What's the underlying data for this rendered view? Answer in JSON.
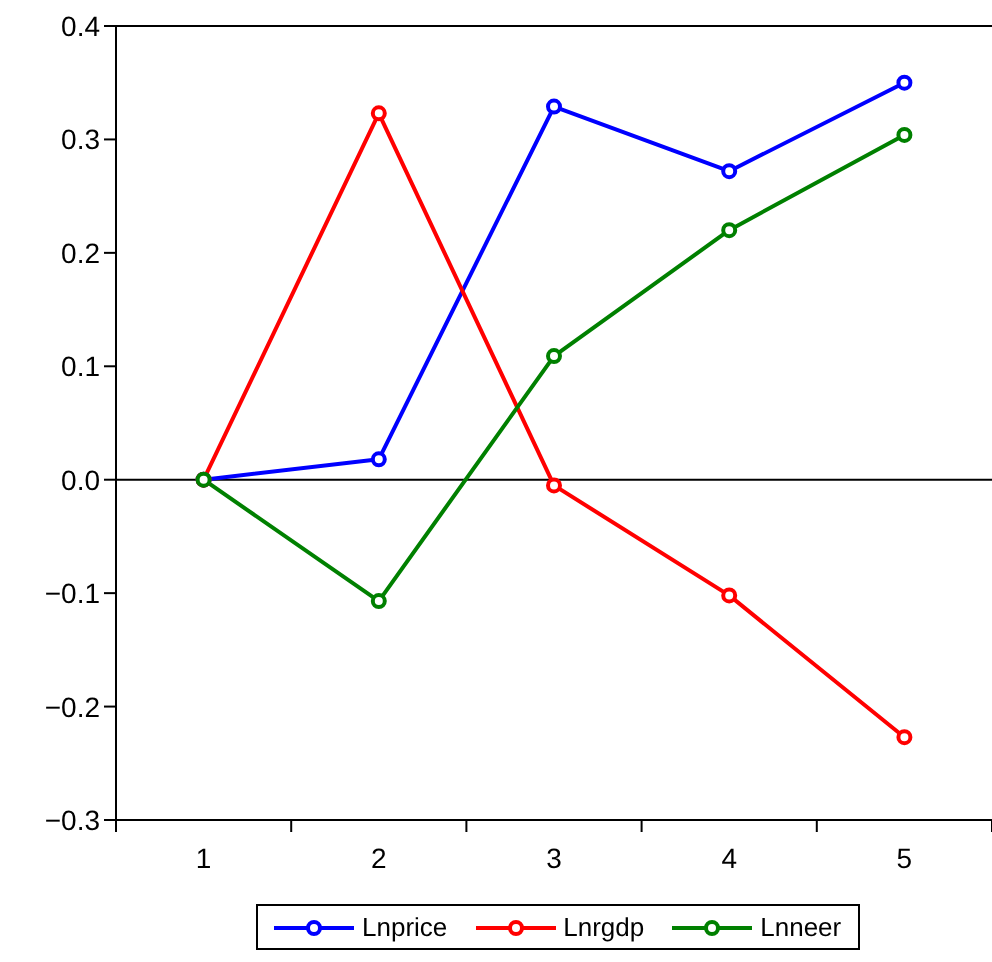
{
  "chart_data": {
    "type": "line",
    "x": [
      1,
      2,
      3,
      4,
      5
    ],
    "series": [
      {
        "name": "Lnprice",
        "color": "#0000ff",
        "values": [
          0,
          0.018,
          0.329,
          0.272,
          0.35
        ]
      },
      {
        "name": "Lnrgdp",
        "color": "#ff0000",
        "values": [
          0,
          0.323,
          -0.005,
          -0.102,
          -0.227
        ]
      },
      {
        "name": "Lnneer",
        "color": "#008000",
        "values": [
          0,
          -0.107,
          0.109,
          0.22,
          0.304
        ]
      }
    ],
    "xlim": [
      0.5,
      5.5
    ],
    "xticks": [
      {
        "value": 0.5,
        "label": null
      },
      1,
      {
        "value": 1.5,
        "label": null
      },
      2,
      {
        "value": 2.5,
        "label": null
      },
      3,
      {
        "value": 3.5,
        "label": null
      },
      4,
      {
        "value": 4.5,
        "label": null
      },
      5,
      {
        "value": 5.5,
        "label": null
      }
    ],
    "ylim": [
      -0.3,
      0.4
    ],
    "yticks": [
      {
        "value": -0.3,
        "label": "−0.3"
      },
      {
        "value": -0.2,
        "label": "−0.2"
      },
      {
        "value": -0.1,
        "label": "−0.1"
      },
      {
        "value": 0,
        "label": "0.0"
      },
      {
        "value": 0.1,
        "label": "0.1"
      },
      {
        "value": 0.2,
        "label": "0.2"
      },
      {
        "value": 0.3,
        "label": "0.3"
      },
      {
        "value": 0.4,
        "label": "0.4"
      }
    ],
    "ref_lines": [
      {
        "axis": "y",
        "value": 0,
        "color": "#000000"
      }
    ],
    "legend": "bottom",
    "marker": "circle",
    "line_style": "solid",
    "grid": false
  }
}
